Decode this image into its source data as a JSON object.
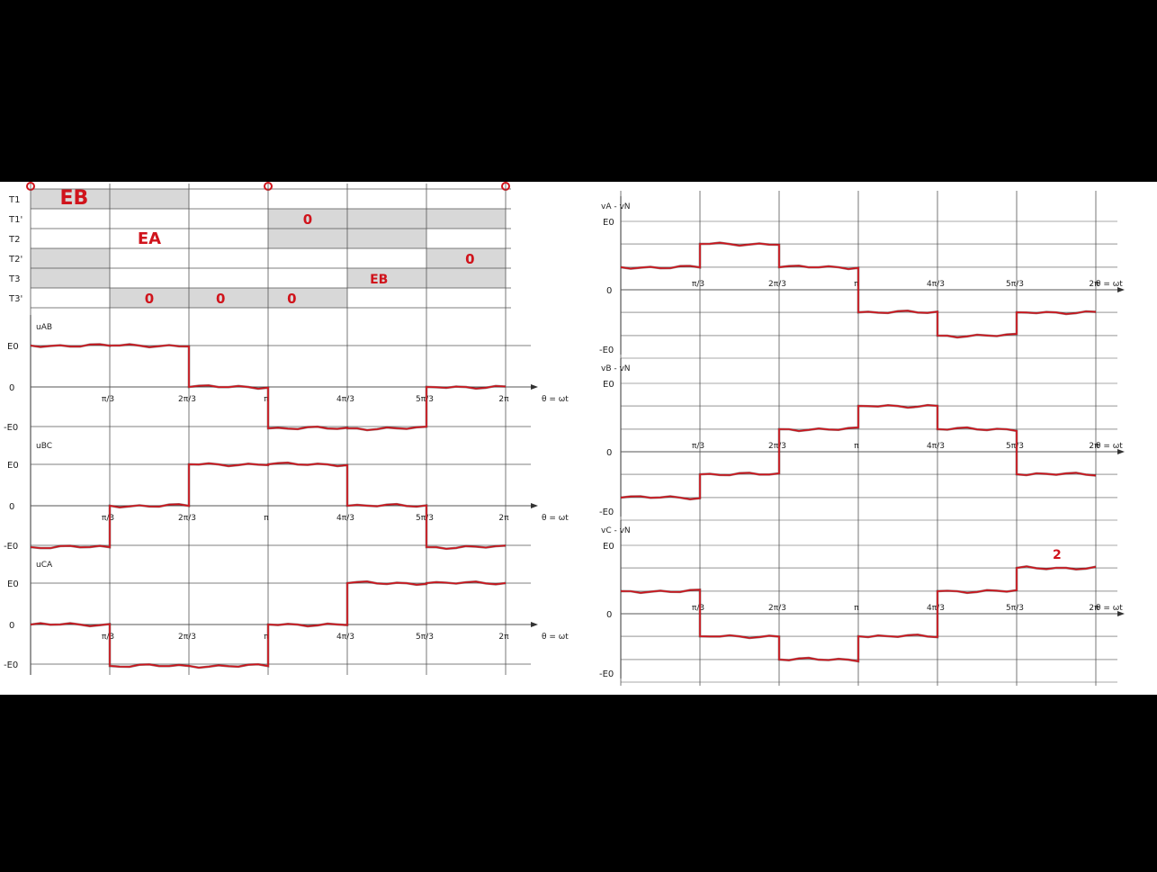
{
  "colors": {
    "background": "#000000",
    "paper": "#ffffff",
    "grid": "#555555",
    "shade": "#d8d8d8",
    "trace": "#d0141c",
    "trace_dark": "#3a1010"
  },
  "left": {
    "switch_rows": [
      "T1",
      "T1'",
      "T2",
      "T2'",
      "T3",
      "T3'"
    ],
    "switch_shading": [
      [
        [
          0,
          2
        ]
      ],
      [
        [
          3,
          6
        ]
      ],
      [
        [
          3,
          5
        ]
      ],
      [
        [
          0,
          1
        ],
        [
          5,
          6
        ]
      ],
      [
        [
          0,
          1
        ],
        [
          4,
          6
        ]
      ],
      [
        [
          1,
          4
        ]
      ]
    ],
    "annotations": [
      {
        "text": "EB",
        "row": 0,
        "sector": 0.55,
        "size": 22
      },
      {
        "text": "0",
        "row": 1,
        "sector": 3.5,
        "size": 15
      },
      {
        "text": "EA",
        "row": 2,
        "sector": 1.5,
        "size": 18
      },
      {
        "text": "0",
        "row": 3,
        "sector": 5.55,
        "size": 15
      },
      {
        "text": "EB",
        "row": 4,
        "sector": 4.4,
        "size": 14
      },
      {
        "text": "0",
        "row": 5,
        "sector": 1.5,
        "size": 15
      },
      {
        "text": "0",
        "row": 5,
        "sector": 2.4,
        "size": 15
      },
      {
        "text": "0",
        "row": 5,
        "sector": 3.3,
        "size": 15
      }
    ],
    "plots": [
      {
        "name": "uAB",
        "label": "uAB",
        "E_label": "E0",
        "neg_label": "-E0",
        "zero_label": "0",
        "levels": [
          1,
          1,
          0,
          -1,
          -1,
          0
        ]
      },
      {
        "name": "uBC",
        "label": "uBC",
        "E_label": "E0",
        "neg_label": "-E0",
        "zero_label": "0",
        "levels": [
          -1,
          0,
          1,
          1,
          0,
          -1
        ]
      },
      {
        "name": "uCA",
        "label": "uCA",
        "E_label": "E0",
        "neg_label": "-E0",
        "zero_label": "0",
        "levels": [
          0,
          -1,
          -1,
          0,
          1,
          1
        ]
      }
    ],
    "x_ticks": [
      "π/3",
      "2π/3",
      "π",
      "4π/3",
      "5π/3",
      "2π"
    ],
    "x_axis_label": "θ = ωt"
  },
  "right": {
    "plots": [
      {
        "name": "vA-vN",
        "label": "vA - vN",
        "E_label": "E0",
        "neg_label": "-E0",
        "zero_label": "0",
        "levels": [
          0.33,
          0.67,
          0.33,
          -0.33,
          -0.67,
          -0.33
        ]
      },
      {
        "name": "vB-vN",
        "label": "vB - vN",
        "E_label": "E0",
        "neg_label": "-E0",
        "zero_label": "0",
        "levels": [
          -0.67,
          -0.33,
          0.33,
          0.67,
          0.33,
          -0.33
        ]
      },
      {
        "name": "vC-vN",
        "label": "vC - vN",
        "E_label": "E0",
        "neg_label": "-E0",
        "zero_label": "0",
        "levels": [
          0.33,
          -0.33,
          -0.67,
          -0.33,
          0.33,
          0.67
        ]
      }
    ],
    "x_ticks": [
      "π/3",
      "2π/3",
      "π",
      "4π/3",
      "5π/3",
      "2π"
    ],
    "x_axis_label": "θ = ωt",
    "annotation": "2"
  }
}
